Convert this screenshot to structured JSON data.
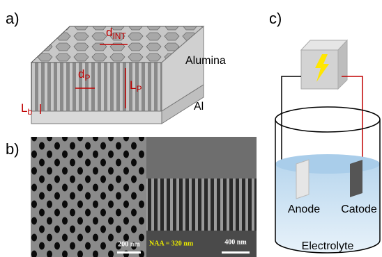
{
  "panels": {
    "a": {
      "label": "a)",
      "d_int": {
        "main": "d",
        "sub": "INT"
      },
      "alumina": "Alumina",
      "d_p": {
        "main": "d",
        "sub": "P"
      },
      "l_p": {
        "main": "L",
        "sub": "P"
      },
      "l_b": {
        "main": "L",
        "sub": "b"
      },
      "al": "Al"
    },
    "b": {
      "label": "b)",
      "scale_left": "200 nm",
      "caption": "NAA = 320 nm",
      "scale_right": "400 nm"
    },
    "c": {
      "label": "c)",
      "anode": "Anode",
      "cathode": "Catode",
      "electrolyte": "Electrolyte"
    }
  }
}
